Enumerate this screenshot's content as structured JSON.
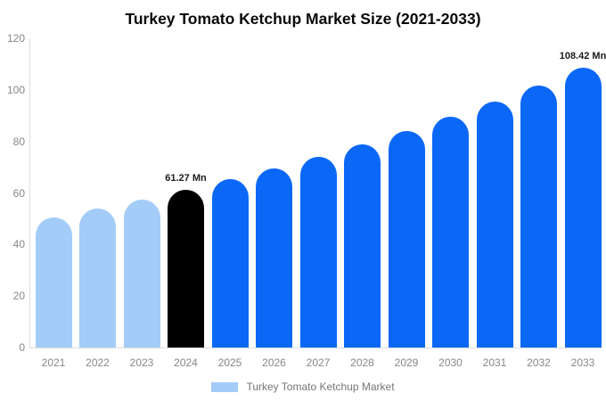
{
  "title": "Turkey Tomato Ketchup Market Size (2021-2033)",
  "colors": {
    "past_bar": "#A3CCF8",
    "highlight_bar": "#000000",
    "forecast_bar": "#0B68F7",
    "axis_line": "#dcdcdc",
    "tick_text": "#878787",
    "annotation_text": "#1b1b1b",
    "legend_text": "#757575"
  },
  "chart_data": {
    "type": "bar",
    "title": "Turkey Tomato Ketchup Market Size (2021-2033)",
    "xlabel": "",
    "ylabel": "",
    "unit": "Mn",
    "categories": [
      "2021",
      "2022",
      "2023",
      "2024",
      "2025",
      "2026",
      "2027",
      "2028",
      "2029",
      "2030",
      "2031",
      "2032",
      "2033"
    ],
    "values": [
      50.6,
      54.0,
      57.5,
      61.27,
      65.3,
      69.6,
      74.1,
      79.0,
      84.2,
      89.7,
      95.5,
      101.8,
      108.42
    ],
    "bar_colors": [
      "#A3CCF8",
      "#A3CCF8",
      "#A3CCF8",
      "#000000",
      "#0B68F7",
      "#0B68F7",
      "#0B68F7",
      "#0B68F7",
      "#0B68F7",
      "#0B68F7",
      "#0B68F7",
      "#0B68F7",
      "#0B68F7"
    ],
    "annotations": [
      {
        "category": "2024",
        "text": "61.27 Mn"
      },
      {
        "category": "2033",
        "text": "108.42 Mn"
      }
    ],
    "ylim": [
      0,
      120
    ],
    "yticks": [
      0,
      20,
      40,
      60,
      80,
      100,
      120
    ],
    "grid": false,
    "legend": {
      "position": "bottom",
      "label": "Turkey Tomato Ketchup Market",
      "swatch_color": "#A3CCF8"
    }
  }
}
